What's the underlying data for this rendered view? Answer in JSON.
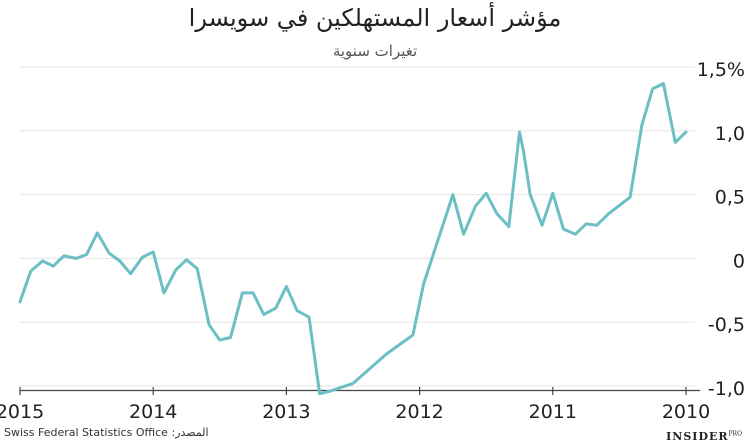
{
  "title": "مؤشر أسعار المستهلكين في سويسرا",
  "subtitle": "تغيرات سنوية",
  "source": "Swiss Federal Statistics Office :المصدر",
  "logo": {
    "main": "INSIDER",
    "suffix": "PRO"
  },
  "chart_data": {
    "type": "line",
    "title": "مؤشر أسعار المستهلكين في سويسرا",
    "subtitle": "تغيرات سنوية",
    "x_axis": {
      "min": 2010.0,
      "max": 2015.0,
      "reversed": true,
      "ticks": [
        2015,
        2014,
        2013,
        2012,
        2011,
        2010
      ],
      "tick_labels": [
        "2015",
        "2014",
        "2013",
        "2012",
        "2011",
        "2010"
      ]
    },
    "y_axis": {
      "min": -1.0,
      "max": 1.5,
      "side": "right",
      "ticks": [
        1.5,
        1.0,
        0.5,
        0,
        -0.5,
        -1.0
      ],
      "tick_labels": [
        "1,5%",
        "1,0",
        "0,5",
        "0",
        "-0,5",
        "-1,0"
      ]
    },
    "grid": true,
    "color": "#6bbfc5",
    "series": [
      {
        "x": [
          2015.0,
          2014.92,
          2014.83,
          2014.75,
          2014.67,
          2014.58,
          2014.5,
          2014.42,
          2014.33,
          2014.25,
          2014.17,
          2014.08,
          2014.0,
          2013.92,
          2013.83,
          2013.75,
          2013.67,
          2013.58,
          2013.5,
          2013.42,
          2013.33,
          2013.25,
          2013.17,
          2013.08,
          2013.0,
          2012.92,
          2012.83,
          2012.75,
          2012.67,
          2012.5,
          2012.25,
          2012.05,
          2011.97,
          2011.75,
          2011.67,
          2011.58,
          2011.5,
          2011.42,
          2011.33,
          2011.25,
          2011.22,
          2011.17,
          2011.08,
          2011.0,
          2010.92,
          2010.83,
          2010.75,
          2010.67,
          2010.58,
          2010.42,
          2010.33,
          2010.25,
          2010.17,
          2010.08,
          2010.0
        ],
        "y": [
          -0.34,
          -0.1,
          -0.02,
          -0.06,
          0.02,
          0.0,
          0.03,
          0.2,
          0.04,
          -0.02,
          -0.12,
          0.01,
          0.05,
          -0.27,
          -0.09,
          -0.01,
          -0.08,
          -0.52,
          -0.64,
          -0.62,
          -0.27,
          -0.27,
          -0.44,
          -0.39,
          -0.22,
          -0.41,
          -0.46,
          -1.06,
          -1.04,
          -0.98,
          -0.75,
          -0.6,
          -0.2,
          0.5,
          0.19,
          0.41,
          0.51,
          0.35,
          0.25,
          0.99,
          0.84,
          0.5,
          0.26,
          0.51,
          0.23,
          0.19,
          0.27,
          0.26,
          0.35,
          0.48,
          1.05,
          1.33,
          1.37,
          0.91,
          0.99
        ]
      }
    ]
  }
}
